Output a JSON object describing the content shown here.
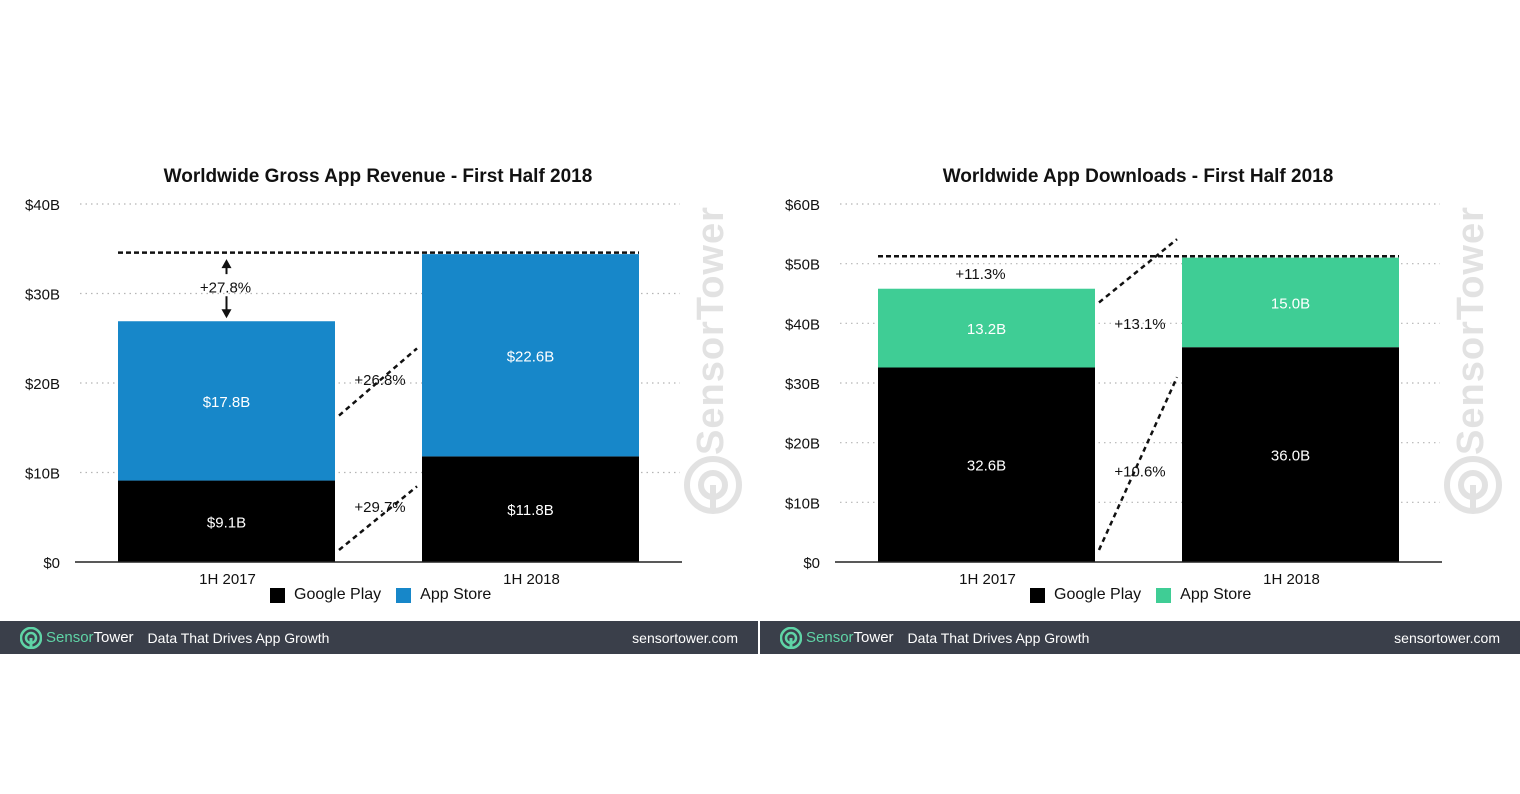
{
  "chart_data": [
    {
      "type": "bar",
      "stacked": true,
      "title": "Worldwide Gross App Revenue - First Half 2018",
      "categories": [
        "1H 2017",
        "1H 2018"
      ],
      "series": [
        {
          "name": "Google Play",
          "values": [
            9.1,
            11.8
          ],
          "labels": [
            "$9.1B",
            "$11.8B"
          ],
          "color": "#000000"
        },
        {
          "name": "App Store",
          "values": [
            17.8,
            22.6
          ],
          "labels": [
            "$17.8B",
            "$22.6B"
          ],
          "color": "#1787c9"
        }
      ],
      "yticks": [
        "$0",
        "$10B",
        "$20B",
        "$30B",
        "$40B"
      ],
      "ylim": [
        0,
        40
      ],
      "growth": {
        "total": "+27.8%",
        "app_store": "+26.8%",
        "google_play": "+29.7%"
      }
    },
    {
      "type": "bar",
      "stacked": true,
      "title": "Worldwide App Downloads - First Half 2018",
      "categories": [
        "1H 2017",
        "1H 2018"
      ],
      "series": [
        {
          "name": "Google Play",
          "values": [
            32.6,
            36.0
          ],
          "labels": [
            "32.6B",
            "36.0B"
          ],
          "color": "#000000"
        },
        {
          "name": "App Store",
          "values": [
            13.2,
            15.0
          ],
          "labels": [
            "13.2B",
            "15.0B"
          ],
          "color": "#3fcd95"
        }
      ],
      "yticks": [
        "$0",
        "$10B",
        "$20B",
        "$30B",
        "$40B",
        "$50B",
        "$60B"
      ],
      "ylim": [
        0,
        60
      ],
      "growth": {
        "total": "+11.3%",
        "app_store": "+13.1%",
        "google_play": "+10.6%"
      }
    }
  ],
  "legend": {
    "google_play": "Google Play",
    "app_store": "App Store"
  },
  "watermark": "SensorTower",
  "footer": {
    "brand_part1": "Sensor",
    "brand_part2": "Tower",
    "tagline": "Data That Drives App Growth",
    "site": "sensortower.com"
  }
}
